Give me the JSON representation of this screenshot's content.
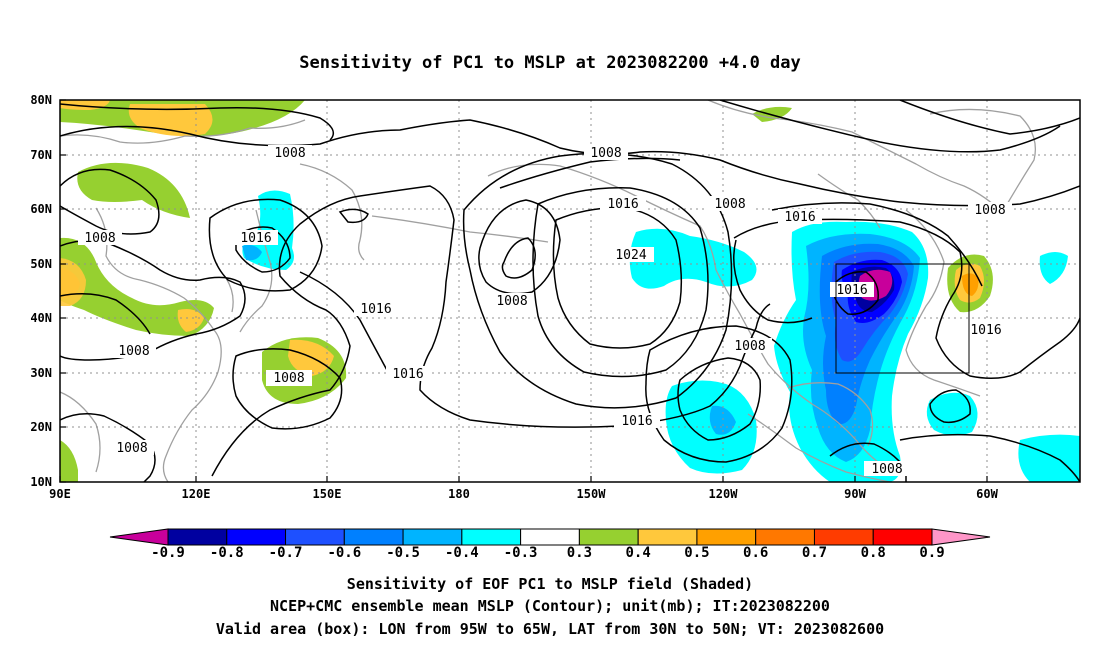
{
  "title": "Sensitivity of PC1 to MSLP at 2023082200 +4.0 day",
  "map": {
    "lon_ticks": [
      "90E",
      "120E",
      "150E",
      "180",
      "150W",
      "120W",
      "90W",
      "60W"
    ],
    "lat_ticks": [
      "80N",
      "70N",
      "60N",
      "50N",
      "40N",
      "30N",
      "20N",
      "10N"
    ],
    "contour_labels": [
      "1008",
      "1008",
      "1008",
      "1008",
      "1008",
      "1008",
      "1008",
      "1008",
      "1008",
      "1016",
      "1016",
      "1016",
      "1016",
      "1016",
      "1016",
      "1016",
      "1016",
      "1024"
    ],
    "colors": {
      "neg_0_9": "#c8009b",
      "neg_0_8": "#0000a0",
      "neg_0_7": "#0000ff",
      "neg_0_6": "#2060ff",
      "neg_0_5": "#00a0ff",
      "neg_0_4": "#00e6ff",
      "zero": "#ffffff",
      "pos_0_3": "#96d030",
      "pos_0_4": "#ffc83c",
      "pos_0_5": "#ff9c00",
      "pos_0_6": "#ff6a00",
      "pos_0_7": "#ff3000",
      "pos_0_8": "#ff0000",
      "pos_0_9": "#ff96c8",
      "coastline": "#a0a0a0"
    }
  },
  "colorbar": {
    "ticks": [
      "-0.9",
      "-0.8",
      "-0.7",
      "-0.6",
      "-0.5",
      "-0.4",
      "-0.3",
      "0.3",
      "0.4",
      "0.5",
      "0.6",
      "0.7",
      "0.8",
      "0.9"
    ],
    "colors": [
      "#0000a0",
      "#0000ff",
      "#1e50ff",
      "#0080ff",
      "#00b4ff",
      "#00ffff",
      "#ffffff",
      "#96d030",
      "#ffc83c",
      "#ffa000",
      "#ff7800",
      "#ff3c00",
      "#ff0000"
    ],
    "left_arrow_color": "#c8009b",
    "right_arrow_color": "#ff96c8"
  },
  "captions": [
    "Sensitivity of EOF PC1 to MSLP field (Shaded)",
    "NCEP+CMC ensemble mean MSLP (Contour); unit(mb); IT:2023082200",
    "Valid area (box): LON from 95W to 65W, LAT from 30N to 50N; VT: 2023082600"
  ]
}
